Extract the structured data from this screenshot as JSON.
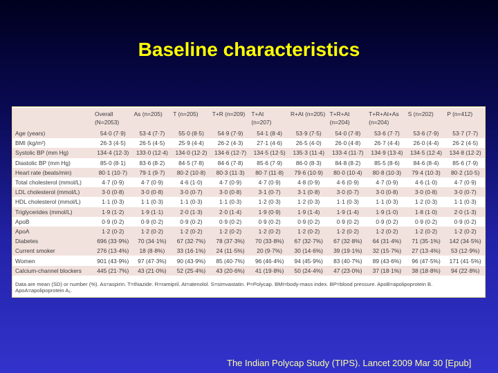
{
  "title": "Baseline characteristics",
  "table": {
    "headers": [
      "",
      "Overall\n(N=2053)",
      "As (n=205)",
      "T (n=205)",
      "T+R (n=209)",
      "T+At\n(n=207)",
      "R+At (n=205)",
      "T+R+At\n(n=204)",
      "T+R+At+As\n(n=204)",
      "S (n=202)",
      "P (n=412)"
    ],
    "rows": [
      {
        "label": "Age (years)",
        "values": [
          "54·0 (7·9)",
          "53·4 (7·7)",
          "55·0 (8·5)",
          "54·9 (7·9)",
          "54·1 (8·4)",
          "53·9 (7·5)",
          "54·0 (7·8)",
          "53·6 (7·7)",
          "53·6 (7·9)",
          "53·7 (7·7)"
        ]
      },
      {
        "label": "BMI (kg/m²)",
        "values": [
          "26·3 (4·5)",
          "26·5 (4·5)",
          "25·9 (4·4)",
          "26·2 (4·3)",
          "27·1 (4·6)",
          "26·5 (4·0)",
          "26·0 (4·8)",
          "26·7 (4·4)",
          "26·0 (4·4)",
          "26·2 (4·5)"
        ]
      },
      {
        "label": "Systolic BP (mm Hg)",
        "values": [
          "134·4 (12·3)",
          "133·0 (12·4)",
          "134·0 (12·2)",
          "134·6 (12·7)",
          "134·5 (12·5)",
          "135·3 (11·4)",
          "133·4 (11·7)",
          "134·9 (13·4)",
          "134·5 (12·4)",
          "134·8 (12·2)"
        ]
      },
      {
        "label": "Diastolic BP (mm Hg)",
        "values": [
          "85·0 (8·1)",
          "83·6 (8·2)",
          "84·5 (7·8)",
          "84·6 (7·8)",
          "85·6 (7·9)",
          "86·0 (8·3)",
          "84·8 (8·2)",
          "85·5 (8·6)",
          "84·6 (8·4)",
          "85·6 (7·9)"
        ]
      },
      {
        "label": "Heart rate (beats/min)",
        "values": [
          "80·1 (10·7)",
          "79·1 (9·7)",
          "80·2 (10·8)",
          "80·3 (11·3)",
          "80·7 (11·8)",
          "79·6 (10·9)",
          "80·0 (10·4)",
          "80·8 (10·3)",
          "79·4 (10·3)",
          "80·2 (10·5)"
        ]
      },
      {
        "label": "Total cholesterol (mmol/L)",
        "values": [
          "4·7 (0·9)",
          "4·7 (0·9)",
          "4·6 (1·0)",
          "4·7 (0·9)",
          "4·7 (0·9)",
          "4·8 (0·9)",
          "4·6 (0·9)",
          "4·7 (0·9)",
          "4·6 (1·0)",
          "4·7 (0·9)"
        ]
      },
      {
        "label": "LDL cholesterol (mmol/L)",
        "values": [
          "3·0 (0·8)",
          "3·0 (0·8)",
          "3·0 (0·7)",
          "3·0 (0·8)",
          "3·1 (0·7)",
          "3·1 (0·8)",
          "3·0 (0·7)",
          "3·0 (0·8)",
          "3·0 (0·8)",
          "3·0 (0·7)"
        ]
      },
      {
        "label": "HDL cholesterol (mmol/L)",
        "values": [
          "1·1 (0·3)",
          "1·1 (0·3)",
          "1·1 (0·3)",
          "1·1 (0·3)",
          "1·2 (0·3)",
          "1·2 (0·3)",
          "1·1 (0·3)",
          "1·1 (0·3)",
          "1·2 (0·3)",
          "1·1 (0·3)"
        ]
      },
      {
        "label": "Triglycerides (mmol/L)",
        "values": [
          "1·9 (1·2)",
          "1·9 (1·1)",
          "2·0 (1·3)",
          "2·0 (1·4)",
          "1·9 (0·9)",
          "1·9 (1·4)",
          "1·9 (1·4)",
          "1·9 (1·0)",
          "1·8 (1·0)",
          "2·0 (1·3)"
        ]
      },
      {
        "label": "ApoB",
        "values": [
          "0·9 (0·2)",
          "0·9 (0·2)",
          "0·9 (0·2)",
          "0·9 (0·2)",
          "0·9 (0·2)",
          "0·9 (0·2)",
          "0·9 (0·2)",
          "0·9 (0·2)",
          "0·9 (0·2)",
          "0·9 (0·2)"
        ]
      },
      {
        "label": "ApoA",
        "values": [
          "1·2 (0·2)",
          "1·2 (0·2)",
          "1·2 (0·2)",
          "1·2 (0·2)",
          "1·2 (0·2)",
          "1·2 (0·2)",
          "1·2 (0·2)",
          "1·2 (0·2)",
          "1·2 (0·2)",
          "1·2 (0·2)"
        ]
      },
      {
        "label": "Diabetes",
        "values": [
          "696 (33·9%)",
          "70 (34·1%)",
          "67 (32·7%)",
          "78 (37·3%)",
          "70 (33·8%)",
          "67 (32·7%)",
          "67 (32·8%)",
          "64 (31·4%)",
          "71 (35·1%)",
          "142 (34·5%)"
        ]
      },
      {
        "label": "Current smoker",
        "values": [
          "276 (13·4%)",
          "18 (8·8%)",
          "33 (16·1%)",
          "24 (11·5%)",
          "20 (9·7%)",
          "30 (14·6%)",
          "39 (19·1%)",
          "32 (15·7%)",
          "27 (13·4%)",
          "53 (12·9%)"
        ]
      },
      {
        "label": "Women",
        "values": [
          "901 (43·9%)",
          "97 (47·3%)",
          "90 (43·9%)",
          "85 (40·7%)",
          "96 (46·4%)",
          "94 (45·9%)",
          "83 (40·7%)",
          "89 (43·6%)",
          "96 (47·5%)",
          "171 (41·5%)"
        ]
      },
      {
        "label": "Calcium-channel blockers",
        "values": [
          "445 (21·7%)",
          "43 (21·0%)",
          "52 (25·4%)",
          "43 (20·6%)",
          "41 (19·8%)",
          "50 (24·4%)",
          "47 (23·0%)",
          "37 (18·1%)",
          "38 (18·8%)",
          "94 (22·8%)"
        ]
      }
    ],
    "footnote": "Data are mean (SD) or number (%). As=aspirin. T=thiazide. R=ramipril. At=atenolol. S=simvastatin. P=Polycap. BMI=body-mass index. BP=blood pressure. ApoB=apolipoprotein B. ApoA=apolipoprotein A₁."
  },
  "citation": "The Indian Polycap Study (TIPS). Lancet 2009 Mar 30 [Epub]",
  "colors": {
    "title": "#ffff00",
    "row_tint": "#f2e2de",
    "citation": "#ffffa0"
  }
}
